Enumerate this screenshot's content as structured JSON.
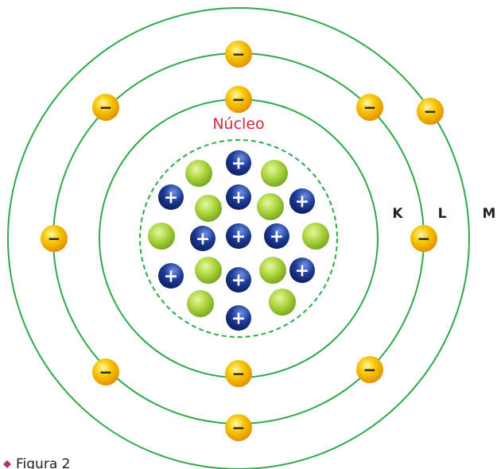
{
  "nucleus_label": "Núcleo",
  "shells": [
    "K",
    "L",
    "M"
  ],
  "caption": "Figura 2",
  "electron_sign": "−",
  "proton_sign": "+"
}
